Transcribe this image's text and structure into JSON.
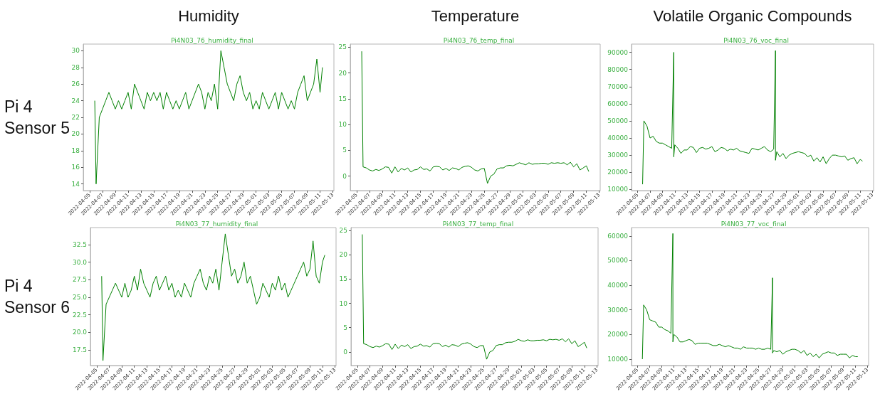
{
  "chart_data": [
    {
      "type": "line",
      "title": "Humidity",
      "subtitle": "Pi4N03_76_humidity_final",
      "ylabel": "Pi 4 Sensor 5",
      "color": "#008000",
      "x": [
        "2022-04-05T19:00",
        "2022-04-06T00:00",
        "2022-04-06T12:00",
        "2022-04-07T00:00",
        "2022-04-07T12:00",
        "2022-04-08T00:00",
        "2022-04-08T12:00",
        "2022-04-09T00:00",
        "2022-04-09T12:00",
        "2022-04-10T00:00",
        "2022-04-10T12:00",
        "2022-04-11T00:00",
        "2022-04-11T12:00",
        "2022-04-12T00:00",
        "2022-04-12T12:00",
        "2022-04-13T00:00",
        "2022-04-13T12:00",
        "2022-04-14T00:00",
        "2022-04-14T12:00",
        "2022-04-15T00:00",
        "2022-04-15T12:00",
        "2022-04-16T00:00",
        "2022-04-16T12:00",
        "2022-04-17T00:00",
        "2022-04-17T12:00",
        "2022-04-18T00:00",
        "2022-04-18T12:00",
        "2022-04-19T00:00",
        "2022-04-19T12:00",
        "2022-04-20T00:00",
        "2022-04-20T12:00",
        "2022-04-21T00:00",
        "2022-04-21T12:00",
        "2022-04-22T00:00",
        "2022-04-22T12:00",
        "2022-04-23T00:00",
        "2022-04-23T12:00",
        "2022-04-24T00:00",
        "2022-04-24T12:00",
        "2022-04-25T00:00",
        "2022-04-25T12:00",
        "2022-04-26T00:00",
        "2022-04-26T12:00",
        "2022-04-27T00:00",
        "2022-04-27T12:00",
        "2022-04-28T00:00",
        "2022-04-28T12:00",
        "2022-04-29T00:00",
        "2022-04-29T12:00",
        "2022-04-30T00:00",
        "2022-04-30T12:00",
        "2022-05-01T00:00",
        "2022-05-01T12:00",
        "2022-05-02T00:00",
        "2022-05-02T12:00",
        "2022-05-03T00:00",
        "2022-05-03T12:00",
        "2022-05-04T00:00",
        "2022-05-04T12:00",
        "2022-05-05T00:00",
        "2022-05-05T12:00",
        "2022-05-06T00:00",
        "2022-05-06T12:00",
        "2022-05-07T00:00",
        "2022-05-07T12:00",
        "2022-05-08T00:00",
        "2022-05-08T12:00",
        "2022-05-09T00:00",
        "2022-05-09T12:00",
        "2022-05-10T00:00",
        "2022-05-10T12:00",
        "2022-05-11T00:00",
        "2022-05-11T09:00"
      ],
      "values": [
        24,
        14,
        22,
        23,
        24,
        25,
        24,
        23,
        24,
        23,
        24,
        25,
        23,
        26,
        25,
        24,
        23,
        25,
        24,
        25,
        24,
        25,
        23,
        25,
        24,
        23,
        24,
        23,
        24,
        25,
        23,
        24,
        25,
        26,
        25,
        23,
        25,
        24,
        26,
        23,
        30,
        28,
        26,
        25,
        24,
        26,
        27,
        25,
        24,
        25,
        23,
        24,
        23,
        25,
        24,
        23,
        24,
        25,
        23,
        25,
        24,
        23,
        24,
        23,
        25,
        26,
        27,
        24,
        25,
        26,
        29,
        25,
        28
      ],
      "xlim": [
        "2022-04-04T00:00",
        "2022-05-13T04:00"
      ],
      "xticks": [
        "2022-04-05",
        "2022-04-07",
        "2022-04-09",
        "2022-04-11",
        "2022-04-13",
        "2022-04-15",
        "2022-04-17",
        "2022-04-19",
        "2022-04-21",
        "2022-04-23",
        "2022-04-25",
        "2022-04-27",
        "2022-04-29",
        "2022-05-01",
        "2022-05-03",
        "2022-05-05",
        "2022-05-07",
        "2022-05-09",
        "2022-05-11",
        "2022-05-13"
      ],
      "ylim": [
        13.2,
        30.8
      ],
      "yticks": [
        14,
        16,
        18,
        20,
        22,
        24,
        26,
        28,
        30
      ]
    },
    {
      "type": "line",
      "title": "Temperature",
      "subtitle": "Pi4N03_76_temp_final",
      "color": "#008000",
      "x": [
        "2022-04-05T19:00",
        "2022-04-06T00:00",
        "2022-04-06T12:00",
        "2022-04-07T00:00",
        "2022-04-07T12:00",
        "2022-04-08T00:00",
        "2022-04-08T12:00",
        "2022-04-09T00:00",
        "2022-04-09T12:00",
        "2022-04-10T00:00",
        "2022-04-10T12:00",
        "2022-04-11T00:00",
        "2022-04-11T12:00",
        "2022-04-12T00:00",
        "2022-04-12T12:00",
        "2022-04-13T00:00",
        "2022-04-13T12:00",
        "2022-04-14T00:00",
        "2022-04-14T12:00",
        "2022-04-15T00:00",
        "2022-04-15T12:00",
        "2022-04-16T00:00",
        "2022-04-16T12:00",
        "2022-04-17T00:00",
        "2022-04-17T12:00",
        "2022-04-18T00:00",
        "2022-04-18T12:00",
        "2022-04-19T00:00",
        "2022-04-19T12:00",
        "2022-04-20T00:00",
        "2022-04-20T12:00",
        "2022-04-21T00:00",
        "2022-04-21T12:00",
        "2022-04-22T00:00",
        "2022-04-22T12:00",
        "2022-04-23T00:00",
        "2022-04-23T12:00",
        "2022-04-24T00:00",
        "2022-04-24T12:00",
        "2022-04-25T00:00",
        "2022-04-25T12:00",
        "2022-04-26T00:00",
        "2022-04-26T12:00",
        "2022-04-27T00:00",
        "2022-04-27T12:00",
        "2022-04-28T00:00",
        "2022-04-28T12:00",
        "2022-04-29T00:00",
        "2022-04-29T12:00",
        "2022-04-30T00:00",
        "2022-04-30T12:00",
        "2022-05-01T00:00",
        "2022-05-01T12:00",
        "2022-05-02T00:00",
        "2022-05-02T12:00",
        "2022-05-03T00:00",
        "2022-05-03T12:00",
        "2022-05-04T00:00",
        "2022-05-04T12:00",
        "2022-05-05T00:00",
        "2022-05-05T12:00",
        "2022-05-06T00:00",
        "2022-05-06T12:00",
        "2022-05-07T00:00",
        "2022-05-07T12:00",
        "2022-05-08T00:00",
        "2022-05-08T12:00",
        "2022-05-09T00:00",
        "2022-05-09T12:00",
        "2022-05-10T00:00",
        "2022-05-10T12:00",
        "2022-05-11T00:00",
        "2022-05-11T09:00"
      ],
      "values": [
        24.2,
        1.8,
        1.6,
        1.2,
        1.0,
        1.3,
        1.1,
        1.4,
        1.8,
        1.7,
        0.6,
        1.8,
        0.8,
        1.5,
        1.2,
        1.6,
        0.8,
        1.2,
        1.3,
        1.8,
        1.3,
        1.4,
        1.0,
        1.8,
        1.9,
        1.8,
        1.2,
        1.5,
        1.1,
        1.6,
        1.5,
        1.2,
        1.7,
        1.9,
        2.0,
        1.7,
        1.2,
        1.0,
        1.4,
        1.5,
        -1.4,
        0.0,
        0.4,
        1.4,
        1.6,
        1.6,
        2.0,
        2.1,
        2.0,
        2.3,
        2.6,
        2.4,
        2.2,
        2.6,
        2.3,
        2.4,
        2.4,
        2.5,
        2.5,
        2.3,
        2.6,
        2.5,
        2.6,
        2.5,
        2.6,
        2.2,
        2.7,
        1.8,
        2.4,
        1.2,
        1.6,
        2.0,
        0.9
      ],
      "xlim": [
        "2022-04-04T00:00",
        "2022-05-13T04:00"
      ],
      "xticks": [
        "2022-04-05",
        "2022-04-07",
        "2022-04-09",
        "2022-04-11",
        "2022-04-13",
        "2022-04-15",
        "2022-04-17",
        "2022-04-19",
        "2022-04-21",
        "2022-04-23",
        "2022-04-25",
        "2022-04-27",
        "2022-04-29",
        "2022-05-01",
        "2022-05-03",
        "2022-05-05",
        "2022-05-07",
        "2022-05-09",
        "2022-05-11",
        "2022-05-13"
      ],
      "ylim": [
        -2.8,
        25.6
      ],
      "yticks": [
        0,
        5,
        10,
        15,
        20,
        25
      ]
    },
    {
      "type": "line",
      "title": "Volatile Organic Compounds",
      "subtitle": "Pi4N03_76_voc_final",
      "color": "#008000",
      "x": [
        "2022-04-05T19:00",
        "2022-04-06T00:00",
        "2022-04-06T12:00",
        "2022-04-07T00:00",
        "2022-04-07T12:00",
        "2022-04-08T00:00",
        "2022-04-08T12:00",
        "2022-04-09T00:00",
        "2022-04-09T12:00",
        "2022-04-10T00:00",
        "2022-04-10T12:00",
        "2022-04-10T20:00",
        "2022-04-10T20:00",
        "2022-04-11T00:00",
        "2022-04-11T12:00",
        "2022-04-12T00:00",
        "2022-04-12T12:00",
        "2022-04-13T00:00",
        "2022-04-13T12:00",
        "2022-04-14T00:00",
        "2022-04-14T12:00",
        "2022-04-15T00:00",
        "2022-04-15T12:00",
        "2022-04-16T00:00",
        "2022-04-16T12:00",
        "2022-04-17T00:00",
        "2022-04-17T12:00",
        "2022-04-18T00:00",
        "2022-04-18T12:00",
        "2022-04-19T00:00",
        "2022-04-19T12:00",
        "2022-04-20T00:00",
        "2022-04-20T12:00",
        "2022-04-21T00:00",
        "2022-04-21T12:00",
        "2022-04-22T00:00",
        "2022-04-22T12:00",
        "2022-04-23T00:00",
        "2022-04-23T12:00",
        "2022-04-24T00:00",
        "2022-04-24T12:00",
        "2022-04-25T00:00",
        "2022-04-25T12:00",
        "2022-04-26T00:00",
        "2022-04-26T12:00",
        "2022-04-27T00:00",
        "2022-04-27T07:00",
        "2022-04-27T07:00",
        "2022-04-27T12:00",
        "2022-04-28T00:00",
        "2022-04-28T12:00",
        "2022-04-29T00:00",
        "2022-04-29T12:00",
        "2022-04-30T00:00",
        "2022-04-30T12:00",
        "2022-05-01T00:00",
        "2022-05-01T12:00",
        "2022-05-02T00:00",
        "2022-05-02T12:00",
        "2022-05-03T00:00",
        "2022-05-03T12:00",
        "2022-05-04T00:00",
        "2022-05-04T12:00",
        "2022-05-05T00:00",
        "2022-05-05T12:00",
        "2022-05-06T00:00",
        "2022-05-06T12:00",
        "2022-05-07T00:00",
        "2022-05-07T12:00",
        "2022-05-08T00:00",
        "2022-05-08T12:00",
        "2022-05-09T00:00",
        "2022-05-09T12:00",
        "2022-05-10T00:00",
        "2022-05-10T12:00",
        "2022-05-11T00:00",
        "2022-05-11T09:00"
      ],
      "values": [
        13000,
        50000,
        47000,
        40000,
        41000,
        38000,
        37000,
        37000,
        36000,
        35000,
        34000,
        90000,
        29000,
        36000,
        34000,
        31000,
        33000,
        33000,
        35000,
        34500,
        31500,
        34000,
        34500,
        33500,
        34000,
        35000,
        32000,
        33000,
        34500,
        34000,
        32500,
        33500,
        33000,
        34000,
        32500,
        32000,
        31500,
        31000,
        34000,
        33500,
        33000,
        34000,
        35000,
        33000,
        32000,
        33500,
        91000,
        27000,
        32000,
        29000,
        31000,
        28000,
        30000,
        31000,
        31500,
        32000,
        31500,
        31000,
        29000,
        30000,
        26500,
        28500,
        26000,
        29000,
        25000,
        28000,
        30000,
        30000,
        29500,
        29000,
        29500,
        27000,
        28000,
        28500,
        25000,
        27500,
        26500
      ],
      "xlim": [
        "2022-04-04T00:00",
        "2022-05-13T04:00"
      ],
      "xticks": [
        "2022-04-05",
        "2022-04-07",
        "2022-04-09",
        "2022-04-11",
        "2022-04-13",
        "2022-04-15",
        "2022-04-17",
        "2022-04-19",
        "2022-04-21",
        "2022-04-23",
        "2022-04-25",
        "2022-04-27",
        "2022-04-29",
        "2022-05-01",
        "2022-05-03",
        "2022-05-05",
        "2022-05-07",
        "2022-05-09",
        "2022-05-11",
        "2022-05-13"
      ],
      "ylim": [
        9300,
        94800
      ],
      "yticks": [
        10000,
        20000,
        30000,
        40000,
        50000,
        60000,
        70000,
        80000,
        90000
      ]
    },
    {
      "type": "line",
      "title": "Pi4N03_77_humidity_final",
      "ylabel": "Pi 4 Sensor 6",
      "color": "#008000",
      "x": [
        "2022-04-05T19:00",
        "2022-04-06T00:00",
        "2022-04-06T12:00",
        "2022-04-07T00:00",
        "2022-04-07T12:00",
        "2022-04-08T00:00",
        "2022-04-08T12:00",
        "2022-04-09T00:00",
        "2022-04-09T12:00",
        "2022-04-10T00:00",
        "2022-04-10T12:00",
        "2022-04-11T00:00",
        "2022-04-11T12:00",
        "2022-04-12T00:00",
        "2022-04-12T12:00",
        "2022-04-13T00:00",
        "2022-04-13T12:00",
        "2022-04-14T00:00",
        "2022-04-14T12:00",
        "2022-04-15T00:00",
        "2022-04-15T12:00",
        "2022-04-16T00:00",
        "2022-04-16T12:00",
        "2022-04-17T00:00",
        "2022-04-17T12:00",
        "2022-04-18T00:00",
        "2022-04-18T12:00",
        "2022-04-19T00:00",
        "2022-04-19T12:00",
        "2022-04-20T00:00",
        "2022-04-20T12:00",
        "2022-04-21T00:00",
        "2022-04-21T12:00",
        "2022-04-22T00:00",
        "2022-04-22T12:00",
        "2022-04-23T00:00",
        "2022-04-23T12:00",
        "2022-04-24T00:00",
        "2022-04-24T12:00",
        "2022-04-25T00:00",
        "2022-04-25T12:00",
        "2022-04-26T00:00",
        "2022-04-26T12:00",
        "2022-04-27T00:00",
        "2022-04-27T12:00",
        "2022-04-28T00:00",
        "2022-04-28T12:00",
        "2022-04-29T00:00",
        "2022-04-29T12:00",
        "2022-04-30T00:00",
        "2022-04-30T12:00",
        "2022-05-01T00:00",
        "2022-05-01T12:00",
        "2022-05-02T00:00",
        "2022-05-02T12:00",
        "2022-05-03T00:00",
        "2022-05-03T12:00",
        "2022-05-04T00:00",
        "2022-05-04T12:00",
        "2022-05-05T00:00",
        "2022-05-05T12:00",
        "2022-05-06T00:00",
        "2022-05-06T12:00",
        "2022-05-07T00:00",
        "2022-05-07T12:00",
        "2022-05-08T00:00",
        "2022-05-08T12:00",
        "2022-05-09T00:00",
        "2022-05-09T12:00",
        "2022-05-10T00:00",
        "2022-05-10T12:00",
        "2022-05-11T00:00",
        "2022-05-11T09:00"
      ],
      "values": [
        28,
        16,
        24,
        25,
        26,
        27,
        26,
        25,
        27,
        25,
        26,
        28,
        26,
        29,
        27,
        26,
        25,
        27,
        28,
        26,
        27,
        28,
        26,
        27,
        25,
        26,
        25,
        27,
        26,
        25,
        27,
        28,
        29,
        27,
        26,
        28,
        27,
        29,
        26,
        30,
        34,
        31,
        28,
        29,
        27,
        28,
        30,
        27,
        28,
        26,
        24,
        25,
        27,
        26,
        25,
        27,
        26,
        28,
        26,
        27,
        25,
        26,
        27,
        28,
        29,
        30,
        28,
        29,
        33,
        28,
        27,
        30,
        31
      ],
      "xlim": [
        "2022-04-04T00:00",
        "2022-05-13T04:00"
      ],
      "xticks": [
        "2022-04-05",
        "2022-04-07",
        "2022-04-09",
        "2022-04-11",
        "2022-04-13",
        "2022-04-15",
        "2022-04-17",
        "2022-04-19",
        "2022-04-21",
        "2022-04-23",
        "2022-04-25",
        "2022-04-27",
        "2022-04-29",
        "2022-05-01",
        "2022-05-03",
        "2022-05-05",
        "2022-05-07",
        "2022-05-09",
        "2022-05-11",
        "2022-05-13"
      ],
      "ylim": [
        15.3,
        34.9
      ],
      "yticks": [
        17.5,
        {
          "value": 20,
          "label": "20.0"
        },
        22.5,
        {
          "value": 25,
          "label": "25.0"
        },
        27.5,
        {
          "value": 30,
          "label": "30.0"
        },
        32.5
      ]
    },
    {
      "type": "line",
      "title": "Pi4N03_77_temp_final",
      "color": "#008000",
      "x": [
        "2022-04-05T19:00",
        "2022-04-06T00:00",
        "2022-04-06T12:00",
        "2022-04-07T00:00",
        "2022-04-07T12:00",
        "2022-04-08T00:00",
        "2022-04-08T12:00",
        "2022-04-09T00:00",
        "2022-04-09T12:00",
        "2022-04-10T00:00",
        "2022-04-10T12:00",
        "2022-04-11T00:00",
        "2022-04-11T12:00",
        "2022-04-12T00:00",
        "2022-04-12T12:00",
        "2022-04-13T00:00",
        "2022-04-13T12:00",
        "2022-04-14T00:00",
        "2022-04-14T12:00",
        "2022-04-15T00:00",
        "2022-04-15T12:00",
        "2022-04-16T00:00",
        "2022-04-16T12:00",
        "2022-04-17T00:00",
        "2022-04-17T12:00",
        "2022-04-18T00:00",
        "2022-04-18T12:00",
        "2022-04-19T00:00",
        "2022-04-19T12:00",
        "2022-04-20T00:00",
        "2022-04-20T12:00",
        "2022-04-21T00:00",
        "2022-04-21T12:00",
        "2022-04-22T00:00",
        "2022-04-22T12:00",
        "2022-04-23T00:00",
        "2022-04-23T12:00",
        "2022-04-24T00:00",
        "2022-04-24T12:00",
        "2022-04-25T00:00",
        "2022-04-25T12:00",
        "2022-04-26T00:00",
        "2022-04-26T12:00",
        "2022-04-27T00:00",
        "2022-04-27T12:00",
        "2022-04-28T00:00",
        "2022-04-28T12:00",
        "2022-04-29T00:00",
        "2022-04-29T12:00",
        "2022-04-30T00:00",
        "2022-04-30T12:00",
        "2022-05-01T00:00",
        "2022-05-01T12:00",
        "2022-05-02T00:00",
        "2022-05-02T12:00",
        "2022-05-03T00:00",
        "2022-05-03T12:00",
        "2022-05-04T00:00",
        "2022-05-04T12:00",
        "2022-05-05T00:00",
        "2022-05-05T12:00",
        "2022-05-06T00:00",
        "2022-05-06T12:00",
        "2022-05-07T00:00",
        "2022-05-07T12:00",
        "2022-05-08T00:00",
        "2022-05-08T12:00",
        "2022-05-09T00:00",
        "2022-05-09T12:00",
        "2022-05-10T00:00",
        "2022-05-10T12:00",
        "2022-05-11T00:00",
        "2022-05-11T09:00"
      ],
      "values": [
        24.2,
        1.7,
        1.5,
        1.1,
        0.9,
        1.2,
        1.0,
        1.3,
        1.7,
        1.6,
        0.5,
        1.6,
        0.7,
        1.4,
        1.1,
        1.5,
        0.7,
        1.1,
        1.2,
        1.6,
        1.2,
        1.3,
        1.0,
        1.7,
        1.8,
        1.7,
        1.1,
        1.4,
        1.0,
        1.5,
        1.4,
        1.1,
        1.6,
        1.8,
        1.9,
        1.6,
        1.1,
        0.9,
        1.3,
        1.3,
        -1.5,
        0.0,
        0.3,
        1.3,
        1.5,
        1.5,
        1.9,
        2.0,
        2.0,
        2.2,
        2.6,
        2.3,
        2.2,
        2.5,
        2.3,
        2.3,
        2.4,
        2.4,
        2.5,
        2.3,
        2.6,
        2.5,
        2.6,
        2.4,
        2.7,
        2.1,
        2.7,
        1.7,
        2.3,
        1.1,
        1.5,
        2.0,
        0.8
      ],
      "xlim": [
        "2022-04-04T00:00",
        "2022-05-13T04:00"
      ],
      "xticks": [
        "2022-04-05",
        "2022-04-07",
        "2022-04-09",
        "2022-04-11",
        "2022-04-13",
        "2022-04-15",
        "2022-04-17",
        "2022-04-19",
        "2022-04-21",
        "2022-04-23",
        "2022-04-25",
        "2022-04-27",
        "2022-04-29",
        "2022-05-01",
        "2022-05-03",
        "2022-05-05",
        "2022-05-07",
        "2022-05-09",
        "2022-05-11",
        "2022-05-13"
      ],
      "ylim": [
        -2.8,
        25.6
      ],
      "yticks": [
        0,
        5,
        10,
        15,
        20,
        25
      ]
    },
    {
      "type": "line",
      "title": "Pi4N03_77_voc_final",
      "color": "#008000",
      "x": [
        "2022-04-05T19:00",
        "2022-04-06T00:00",
        "2022-04-06T12:00",
        "2022-04-07T00:00",
        "2022-04-07T12:00",
        "2022-04-08T00:00",
        "2022-04-08T12:00",
        "2022-04-09T00:00",
        "2022-04-09T12:00",
        "2022-04-10T00:00",
        "2022-04-10T12:00",
        "2022-04-10T20:00",
        "2022-04-10T20:00",
        "2022-04-11T00:00",
        "2022-04-11T12:00",
        "2022-04-12T00:00",
        "2022-04-12T12:00",
        "2022-04-13T00:00",
        "2022-04-13T12:00",
        "2022-04-14T00:00",
        "2022-04-14T12:00",
        "2022-04-15T00:00",
        "2022-04-15T12:00",
        "2022-04-16T00:00",
        "2022-04-16T12:00",
        "2022-04-17T00:00",
        "2022-04-17T12:00",
        "2022-04-18T00:00",
        "2022-04-18T12:00",
        "2022-04-19T00:00",
        "2022-04-19T12:00",
        "2022-04-20T00:00",
        "2022-04-20T12:00",
        "2022-04-21T00:00",
        "2022-04-21T12:00",
        "2022-04-22T00:00",
        "2022-04-22T12:00",
        "2022-04-23T00:00",
        "2022-04-23T12:00",
        "2022-04-24T00:00",
        "2022-04-24T12:00",
        "2022-04-25T00:00",
        "2022-04-25T12:00",
        "2022-04-26T00:00",
        "2022-04-26T12:00",
        "2022-04-27T00:00",
        "2022-04-27T07:00",
        "2022-04-27T07:00",
        "2022-04-27T12:00",
        "2022-04-28T00:00",
        "2022-04-28T12:00",
        "2022-04-29T00:00",
        "2022-04-29T12:00",
        "2022-04-30T00:00",
        "2022-04-30T12:00",
        "2022-05-01T00:00",
        "2022-05-01T12:00",
        "2022-05-02T00:00",
        "2022-05-02T12:00",
        "2022-05-03T00:00",
        "2022-05-03T12:00",
        "2022-05-04T00:00",
        "2022-05-04T12:00",
        "2022-05-05T00:00",
        "2022-05-05T12:00",
        "2022-05-06T00:00",
        "2022-05-06T12:00",
        "2022-05-07T00:00",
        "2022-05-07T12:00",
        "2022-05-08T00:00",
        "2022-05-08T12:00",
        "2022-05-09T00:00",
        "2022-05-09T12:00",
        "2022-05-10T00:00",
        "2022-05-10T12:00",
        "2022-05-11T00:00",
        "2022-05-11T09:00"
      ],
      "values": [
        10000,
        32000,
        30000,
        26000,
        25500,
        25000,
        23000,
        23000,
        22000,
        21500,
        20500,
        61000,
        17000,
        20000,
        19000,
        17000,
        17000,
        17500,
        18000,
        17500,
        16000,
        16500,
        16500,
        16500,
        16500,
        16000,
        15500,
        15500,
        16000,
        15500,
        15000,
        15500,
        15000,
        14500,
        14500,
        14000,
        15000,
        14500,
        14500,
        14500,
        14000,
        14500,
        14000,
        14000,
        14500,
        14000,
        43000,
        12500,
        13500,
        13000,
        13500,
        12000,
        13000,
        13500,
        14000,
        14000,
        13500,
        12500,
        13500,
        11500,
        12500,
        11000,
        12000,
        10500,
        12000,
        12500,
        13000,
        12500,
        12500,
        11500,
        12000,
        12000,
        12000,
        10500,
        11500,
        11000,
        11000
      ],
      "xlim": [
        "2022-04-04T00:00",
        "2022-05-13T04:00"
      ],
      "xticks": [
        "2022-04-05",
        "2022-04-07",
        "2022-04-09",
        "2022-04-11",
        "2022-04-13",
        "2022-04-15",
        "2022-04-17",
        "2022-04-19",
        "2022-04-21",
        "2022-04-23",
        "2022-04-25",
        "2022-04-27",
        "2022-04-29",
        "2022-05-01",
        "2022-05-03",
        "2022-05-05",
        "2022-05-07",
        "2022-05-09",
        "2022-05-11",
        "2022-05-13"
      ],
      "ylim": [
        7400,
        63400
      ],
      "yticks": [
        10000,
        20000,
        30000,
        40000,
        50000,
        60000
      ]
    }
  ]
}
